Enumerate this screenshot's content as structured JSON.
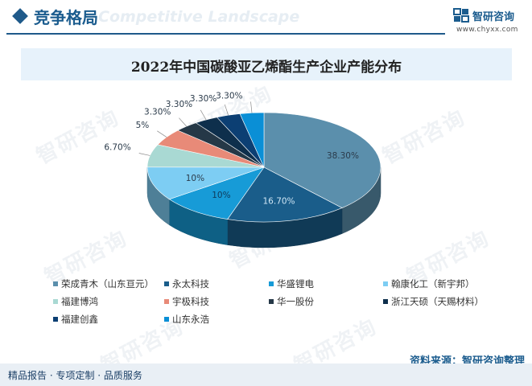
{
  "header": {
    "title": "竞争格局",
    "subtitle_en": "Competitive Landscape"
  },
  "brand": {
    "name": "智研咨询",
    "url": "www.chyxx.com"
  },
  "watermark": "智研咨询",
  "chart_data": {
    "type": "pie",
    "style": "3d",
    "title": "2022年中国碳酸亚乙烯酯生产企业产能分布",
    "legend_position": "bottom",
    "unit": "%",
    "series": [
      {
        "name": "荣成青木（山东亘元）",
        "value": 38.3,
        "label": "38.30%",
        "color": "#5b8fac"
      },
      {
        "name": "永太科技",
        "value": 16.7,
        "label": "16.70%",
        "color": "#1a5d8a"
      },
      {
        "name": "华盛锂电",
        "value": 10,
        "label": "10%",
        "color": "#179bd7"
      },
      {
        "name": "翰康化工（新宇邦）",
        "value": 10,
        "label": "10%",
        "color": "#7dcdf3"
      },
      {
        "name": "福建博鸿",
        "value": 6.7,
        "label": "6.70%",
        "color": "#a9d9d3"
      },
      {
        "name": "宇极科技",
        "value": 5,
        "label": "5%",
        "color": "#e88a78"
      },
      {
        "name": "华一股份",
        "value": 3.3,
        "label": "3.30%",
        "color": "#253847"
      },
      {
        "name": "浙江天硕（天赐材料）",
        "value": 3.3,
        "label": "3.30%",
        "color": "#0e2f4c"
      },
      {
        "name": "福建创鑫",
        "value": 3.3,
        "label": "3.30%",
        "color": "#0c3f73"
      },
      {
        "name": "山东永浩",
        "value": 3.3,
        "label": "3.30%",
        "color": "#0a8fd6"
      }
    ]
  },
  "source": "资料来源：智研咨询整理",
  "footer": {
    "services": "精品报告 · 专项定制 · 品质服务"
  }
}
